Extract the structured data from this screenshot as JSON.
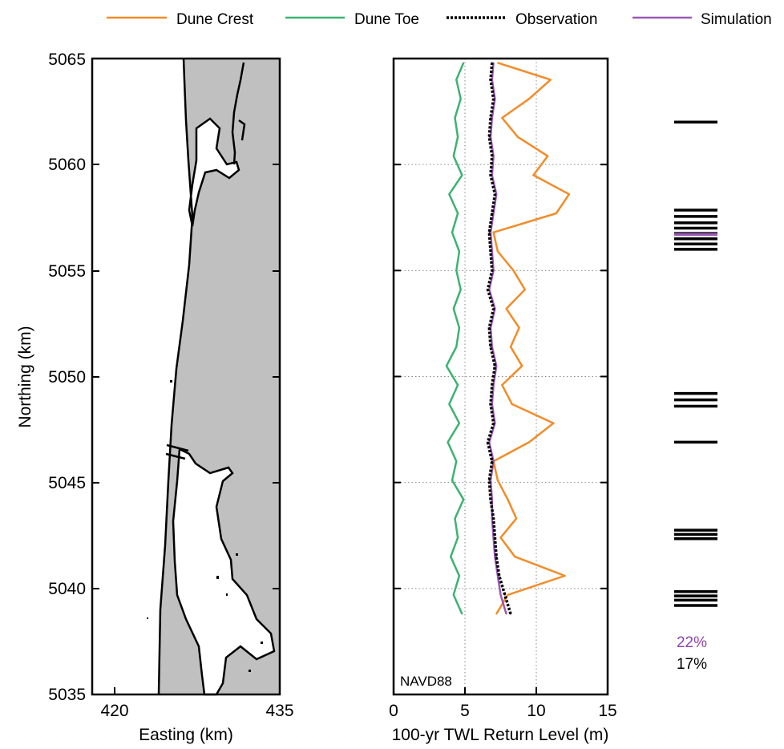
{
  "legend": {
    "items": [
      {
        "label": "Dune Crest",
        "color": "#f28c28",
        "style": "solid"
      },
      {
        "label": "Dune Toe",
        "color": "#3cb371",
        "style": "solid"
      },
      {
        "label": "Observation",
        "color": "#000000",
        "style": "dotted"
      },
      {
        "label": "Simulation",
        "color": "#9b59b6",
        "style": "solid"
      }
    ]
  },
  "colors": {
    "land": "#ffffff",
    "water": "#c0c0c0",
    "grid": "#8a8a8a"
  },
  "chart_data": [
    {
      "type": "map",
      "panel": "coastline-map",
      "xlabel": "Easting (km)",
      "ylabel": "Northing (km)",
      "xlim": [
        418,
        435
      ],
      "ylim": [
        5035,
        5065
      ],
      "xticks": [
        "420",
        "435"
      ],
      "yticks": [
        "5035",
        "5040",
        "5045",
        "5050",
        "5055",
        "5060",
        "5065"
      ],
      "grid": false
    },
    {
      "type": "line",
      "panel": "twl-profile",
      "xlabel": "100-yr TWL Return Level (m)",
      "xlim": [
        0,
        15
      ],
      "ylim": [
        5035,
        5065
      ],
      "xticks": [
        "0",
        "5",
        "10",
        "15"
      ],
      "grid": true,
      "annotation": "NAVD88",
      "y": [
        5038.8,
        5039.7,
        5040.6,
        5041.5,
        5042.4,
        5043.3,
        5044.2,
        5045.1,
        5046.0,
        5046.9,
        5047.8,
        5048.7,
        5049.6,
        5050.5,
        5051.4,
        5052.3,
        5053.2,
        5054.1,
        5055.0,
        5055.9,
        5056.8,
        5057.7,
        5058.6,
        5059.5,
        5060.4,
        5061.3,
        5062.2,
        5063.1,
        5064.0,
        5064.8
      ],
      "series": [
        {
          "name": "Dune Crest",
          "color": "#f28c28",
          "values": [
            7.2,
            8.0,
            12.0,
            8.5,
            7.5,
            8.6,
            8.0,
            7.3,
            7.0,
            9.5,
            11.2,
            8.3,
            7.6,
            9.0,
            8.2,
            8.8,
            7.9,
            9.2,
            8.4,
            7.3,
            7.0,
            11.4,
            12.3,
            9.8,
            10.8,
            8.7,
            7.6,
            9.5,
            11.0,
            7.3
          ]
        },
        {
          "name": "Dune Toe",
          "color": "#3cb371",
          "values": [
            4.8,
            4.2,
            4.6,
            4.0,
            4.5,
            4.3,
            4.9,
            4.1,
            4.4,
            3.8,
            4.6,
            3.9,
            4.5,
            3.7,
            4.4,
            4.6,
            4.2,
            4.7,
            4.4,
            4.6,
            4.1,
            4.5,
            3.9,
            4.8,
            4.2,
            4.5,
            4.3,
            4.7,
            4.4,
            4.9
          ]
        },
        {
          "name": "Observation",
          "color": "#000000",
          "values": [
            8.2,
            7.8,
            7.4,
            7.2,
            7.1,
            7.0,
            6.8,
            6.7,
            6.9,
            6.6,
            7.0,
            6.8,
            6.9,
            7.1,
            6.8,
            6.7,
            7.0,
            6.6,
            6.9,
            6.8,
            6.7,
            6.9,
            7.1,
            6.8,
            6.9,
            6.7,
            6.8,
            7.0,
            6.8,
            6.9
          ]
        },
        {
          "name": "Simulation",
          "color": "#9b59b6",
          "values": [
            7.9,
            7.5,
            7.3,
            7.1,
            7.0,
            6.9,
            6.9,
            6.8,
            7.0,
            6.7,
            7.1,
            6.9,
            7.0,
            7.2,
            6.9,
            6.8,
            7.1,
            6.7,
            7.0,
            6.9,
            6.8,
            7.0,
            7.2,
            6.9,
            7.0,
            6.8,
            6.9,
            7.1,
            6.9,
            7.0
          ]
        }
      ]
    },
    {
      "type": "event-strip",
      "panel": "exceedance-strip",
      "ylim": [
        5035,
        5065
      ],
      "observed_events": [
        5039.2,
        5039.45,
        5039.65,
        5039.85,
        5042.35,
        5042.55,
        5042.75,
        5046.9,
        5048.6,
        5048.9,
        5049.2,
        5056.0,
        5056.25,
        5056.5,
        5056.75,
        5057.0,
        5057.25,
        5057.55,
        5057.85,
        5062.0
      ],
      "simulated_events": [
        5056.7
      ],
      "labels": {
        "simulated_percent": "22%",
        "observed_percent": "17%"
      },
      "label_colors": {
        "simulated_percent": "#8e44ad",
        "observed_percent": "#000000"
      }
    }
  ]
}
